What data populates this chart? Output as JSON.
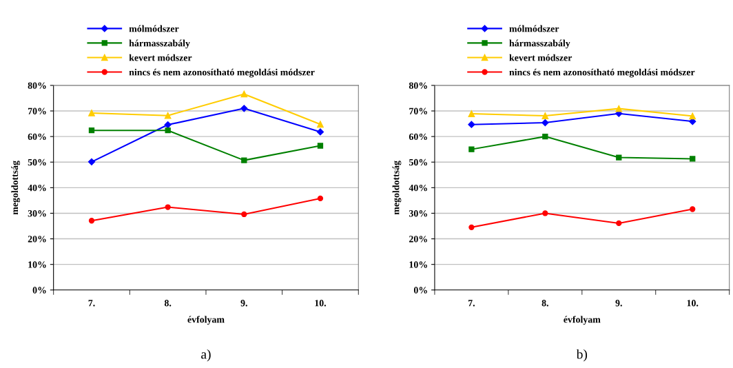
{
  "chart_data": [
    {
      "type": "line",
      "categories": [
        "7.",
        "8.",
        "9.",
        "10."
      ],
      "xlabel": "évfolyam",
      "ylabel": "megoldottság",
      "ylim": [
        0,
        80
      ],
      "yticks": [
        {
          "value": 0,
          "label": "0%"
        },
        {
          "value": 10,
          "label": "10%"
        },
        {
          "value": 20,
          "label": "20%"
        },
        {
          "value": 30,
          "label": "30%"
        },
        {
          "value": 40,
          "label": "40%"
        },
        {
          "value": 50,
          "label": "50%"
        },
        {
          "value": 60,
          "label": "60%"
        },
        {
          "value": 70,
          "label": "70%"
        },
        {
          "value": 80,
          "label": "80%"
        }
      ],
      "grid": "y",
      "legend": "top",
      "annotations": [
        "a)"
      ],
      "series": [
        {
          "name": "mólmódszer",
          "color": "#0000ff",
          "marker": "diamond",
          "values": [
            50.1,
            64.6,
            71.0,
            61.8
          ]
        },
        {
          "name": "hármasszabály",
          "color": "#008000",
          "marker": "square",
          "values": [
            62.4,
            62.4,
            50.7,
            56.4
          ]
        },
        {
          "name": "kevert módszer",
          "color": "#ffcc00",
          "marker": "triangle",
          "values": [
            69.2,
            68.2,
            76.6,
            64.8
          ]
        },
        {
          "name": "nincs és nem azonosítható megoldási módszer",
          "color": "#ff0000",
          "marker": "circle",
          "values": [
            27.1,
            32.4,
            29.6,
            35.8
          ]
        }
      ]
    },
    {
      "type": "line",
      "categories": [
        "7.",
        "8.",
        "9.",
        "10."
      ],
      "xlabel": "évfolyam",
      "ylabel": "megoldottság",
      "ylim": [
        0,
        80
      ],
      "yticks": [
        {
          "value": 0,
          "label": "0%"
        },
        {
          "value": 10,
          "label": "10%"
        },
        {
          "value": 20,
          "label": "20%"
        },
        {
          "value": 30,
          "label": "30%"
        },
        {
          "value": 40,
          "label": "40%"
        },
        {
          "value": 50,
          "label": "50%"
        },
        {
          "value": 60,
          "label": "60%"
        },
        {
          "value": 70,
          "label": "70%"
        },
        {
          "value": 80,
          "label": "80%"
        }
      ],
      "grid": "y",
      "legend": "top",
      "annotations": [
        "b)"
      ],
      "series": [
        {
          "name": "mólmódszer",
          "color": "#0000ff",
          "marker": "diamond",
          "values": [
            64.7,
            65.4,
            69.0,
            65.9
          ]
        },
        {
          "name": "hármasszabály",
          "color": "#008000",
          "marker": "square",
          "values": [
            55.0,
            60.0,
            51.8,
            51.3
          ]
        },
        {
          "name": "kevert módszer",
          "color": "#ffcc00",
          "marker": "triangle",
          "values": [
            68.9,
            68.1,
            70.9,
            68.0
          ]
        },
        {
          "name": "nincs és nem azonosítható megoldási módszer",
          "color": "#ff0000",
          "marker": "circle",
          "values": [
            24.5,
            30.0,
            26.1,
            31.6
          ]
        }
      ]
    }
  ]
}
